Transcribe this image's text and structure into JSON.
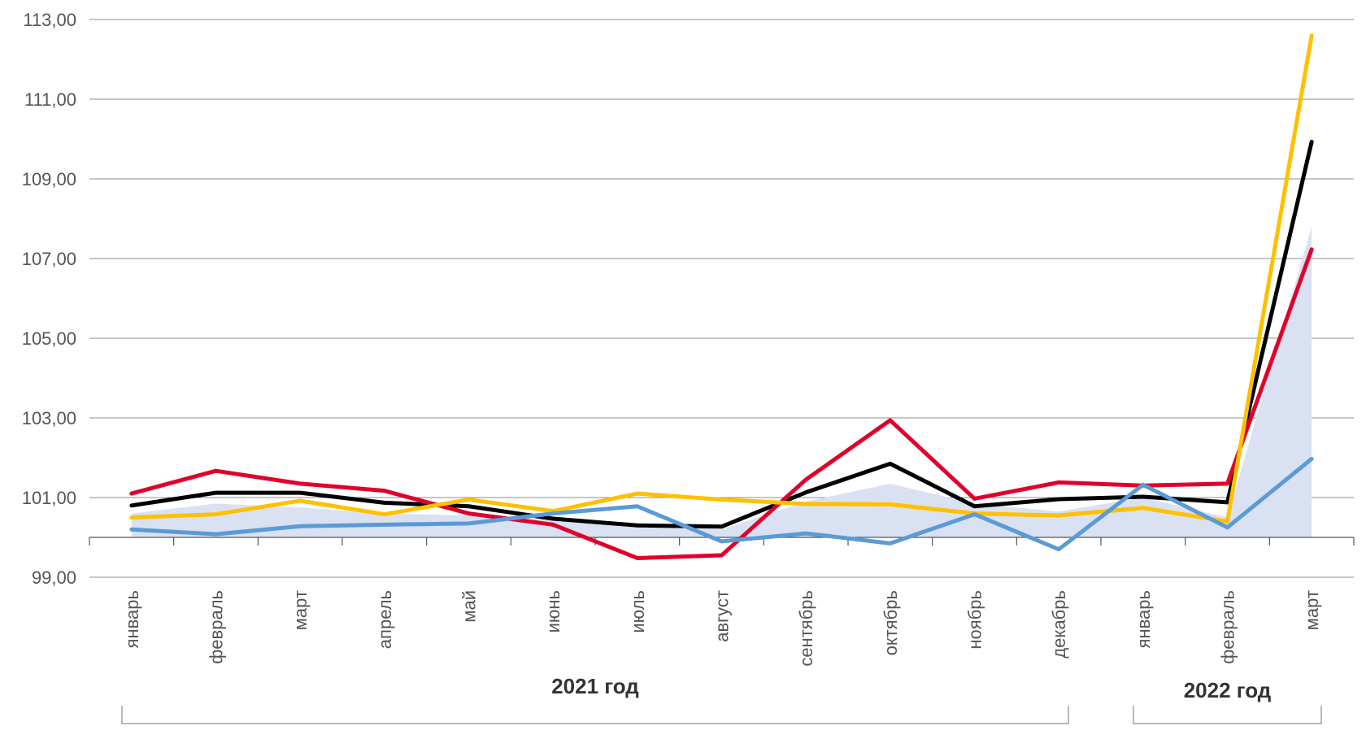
{
  "chart_data": {
    "type": "line",
    "title": "",
    "xlabel": "",
    "ylabel": "",
    "ylim": [
      99,
      113
    ],
    "ytick_labels": [
      "99,00",
      "101,00",
      "103,00",
      "105,00",
      "107,00",
      "109,00",
      "111,00",
      "113,00"
    ],
    "ytick_values": [
      99,
      101,
      103,
      105,
      107,
      109,
      111,
      113
    ],
    "baseline": 100,
    "grid": true,
    "legend": "none",
    "categories": [
      "январь",
      "февраль",
      "март",
      "апрель",
      "май",
      "июнь",
      "июль",
      "август",
      "сентябрь",
      "октябрь",
      "ноябрь",
      "декабрь",
      "январь",
      "февраль",
      "март"
    ],
    "groups": [
      {
        "label": "2021 год",
        "from": 0,
        "to": 11
      },
      {
        "label": "2022 год",
        "from": 12,
        "to": 14
      }
    ],
    "area_series": {
      "color": "#d9e1f2",
      "values": [
        100.6,
        100.85,
        100.75,
        100.6,
        100.55,
        100.45,
        100.35,
        100.2,
        100.9,
        101.35,
        100.85,
        100.65,
        101.0,
        100.5,
        107.8
      ]
    },
    "series": [
      {
        "color": "#000000",
        "values": [
          100.8,
          101.12,
          101.12,
          100.87,
          100.78,
          100.47,
          100.3,
          100.27,
          101.13,
          101.85,
          100.78,
          100.96,
          101.02,
          100.88,
          109.93
        ]
      },
      {
        "color": "#e0002a",
        "values": [
          101.1,
          101.67,
          101.35,
          101.17,
          100.6,
          100.32,
          99.48,
          99.55,
          101.45,
          102.94,
          100.97,
          101.38,
          101.3,
          101.35,
          107.23
        ]
      },
      {
        "color": "#ffc000",
        "values": [
          100.5,
          100.58,
          100.92,
          100.58,
          100.95,
          100.66,
          101.1,
          100.95,
          100.84,
          100.83,
          100.6,
          100.55,
          100.74,
          100.4,
          112.6
        ]
      },
      {
        "color": "#5b9bd5",
        "values": [
          100.2,
          100.08,
          100.28,
          100.32,
          100.35,
          100.6,
          100.78,
          99.9,
          100.1,
          99.85,
          100.58,
          99.7,
          101.32,
          100.25,
          101.97
        ]
      }
    ]
  }
}
